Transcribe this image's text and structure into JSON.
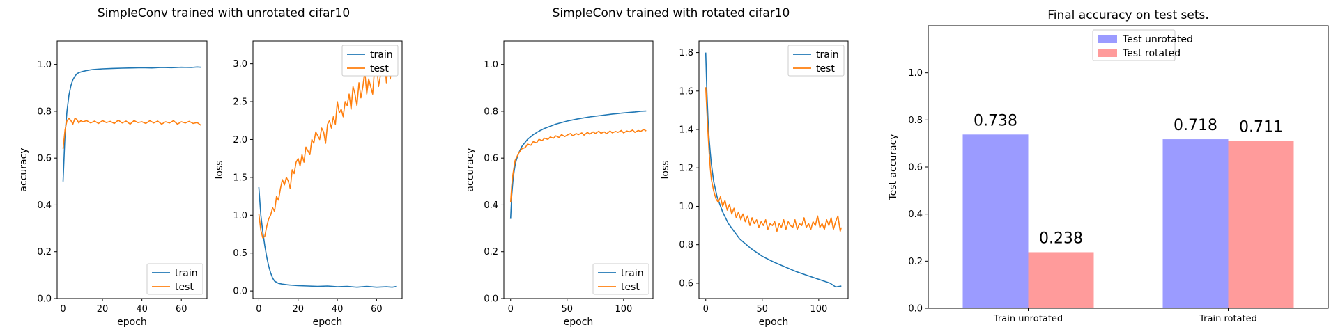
{
  "figure": {
    "suptitles": [
      "SimpleConv trained with unrotated cifar10",
      "SimpleConv trained with rotated cifar10"
    ]
  },
  "colors": {
    "train": "#1f77b4",
    "test": "#ff7f0e",
    "test_unrotated_bar": "#9b9bff",
    "test_rotated_bar": "#ff9b9b"
  },
  "chart_data": [
    {
      "id": "acc-unrotated",
      "type": "line",
      "title": "",
      "xlabel": "epoch",
      "ylabel": "accuracy",
      "xlim": [
        -3,
        73
      ],
      "ylim": [
        0.0,
        1.1
      ],
      "xticks": [
        0,
        20,
        40,
        60
      ],
      "yticks": [
        0.0,
        0.2,
        0.4,
        0.6,
        0.8,
        1.0
      ],
      "legend": "lower-right",
      "series": [
        {
          "name": "train",
          "color": "#1f77b4",
          "x": [
            0,
            1,
            2,
            3,
            4,
            5,
            6,
            7,
            8,
            10,
            12,
            15,
            18,
            20,
            25,
            30,
            35,
            40,
            45,
            50,
            55,
            60,
            65,
            68,
            70
          ],
          "y": [
            0.5,
            0.7,
            0.8,
            0.87,
            0.91,
            0.935,
            0.95,
            0.96,
            0.965,
            0.97,
            0.974,
            0.978,
            0.98,
            0.981,
            0.983,
            0.984,
            0.985,
            0.986,
            0.985,
            0.987,
            0.986,
            0.988,
            0.987,
            0.989,
            0.988
          ]
        },
        {
          "name": "test",
          "color": "#ff7f0e",
          "x": [
            0,
            1,
            2,
            3,
            4,
            5,
            6,
            7,
            8,
            9,
            10,
            12,
            14,
            16,
            18,
            20,
            22,
            24,
            26,
            28,
            30,
            32,
            34,
            36,
            38,
            40,
            42,
            44,
            46,
            48,
            50,
            52,
            54,
            56,
            58,
            60,
            62,
            64,
            66,
            68,
            70
          ],
          "y": [
            0.64,
            0.72,
            0.76,
            0.77,
            0.76,
            0.745,
            0.77,
            0.765,
            0.75,
            0.76,
            0.755,
            0.76,
            0.75,
            0.758,
            0.748,
            0.76,
            0.752,
            0.757,
            0.748,
            0.762,
            0.75,
            0.758,
            0.745,
            0.76,
            0.752,
            0.755,
            0.748,
            0.76,
            0.75,
            0.758,
            0.745,
            0.755,
            0.75,
            0.76,
            0.745,
            0.755,
            0.75,
            0.757,
            0.748,
            0.752,
            0.74
          ]
        }
      ]
    },
    {
      "id": "loss-unrotated",
      "type": "line",
      "title": "",
      "xlabel": "epoch",
      "ylabel": "loss",
      "xlim": [
        -3,
        73
      ],
      "ylim": [
        -0.1,
        3.3
      ],
      "xticks": [
        0,
        20,
        40,
        60
      ],
      "yticks": [
        0.0,
        0.5,
        1.0,
        1.5,
        2.0,
        2.5,
        3.0
      ],
      "legend": "upper-right",
      "series": [
        {
          "name": "train",
          "color": "#1f77b4",
          "x": [
            0,
            1,
            2,
            3,
            4,
            5,
            6,
            7,
            8,
            10,
            12,
            15,
            20,
            25,
            30,
            35,
            40,
            45,
            50,
            55,
            60,
            65,
            68,
            70
          ],
          "y": [
            1.37,
            1.0,
            0.78,
            0.6,
            0.45,
            0.33,
            0.24,
            0.17,
            0.13,
            0.1,
            0.09,
            0.08,
            0.07,
            0.065,
            0.06,
            0.065,
            0.055,
            0.06,
            0.05,
            0.06,
            0.05,
            0.055,
            0.05,
            0.06
          ]
        },
        {
          "name": "test",
          "color": "#ff7f0e",
          "x": [
            0,
            1,
            2,
            3,
            4,
            5,
            6,
            7,
            8,
            9,
            10,
            11,
            12,
            13,
            14,
            15,
            16,
            17,
            18,
            19,
            20,
            21,
            22,
            23,
            24,
            25,
            26,
            27,
            28,
            29,
            30,
            31,
            32,
            33,
            34,
            35,
            36,
            37,
            38,
            39,
            40,
            41,
            42,
            43,
            44,
            45,
            46,
            47,
            48,
            49,
            50,
            51,
            52,
            53,
            54,
            55,
            56,
            57,
            58,
            59,
            60,
            61,
            62,
            63,
            64,
            65,
            66,
            67,
            68,
            69,
            70
          ],
          "y": [
            1.02,
            0.8,
            0.7,
            0.72,
            0.85,
            0.95,
            1.0,
            1.1,
            1.05,
            1.25,
            1.2,
            1.35,
            1.47,
            1.4,
            1.5,
            1.45,
            1.35,
            1.6,
            1.55,
            1.7,
            1.75,
            1.65,
            1.8,
            1.7,
            1.9,
            1.85,
            1.8,
            2.0,
            1.95,
            2.1,
            2.05,
            2.0,
            2.15,
            2.1,
            1.95,
            2.2,
            2.25,
            2.15,
            2.3,
            2.2,
            2.5,
            2.35,
            2.4,
            2.3,
            2.5,
            2.45,
            2.6,
            2.4,
            2.7,
            2.6,
            2.45,
            2.75,
            2.55,
            2.7,
            2.9,
            2.6,
            2.8,
            2.7,
            2.6,
            2.95,
            3.0,
            2.7,
            2.85,
            2.9,
            3.1,
            2.75,
            3.0,
            2.8,
            3.05,
            2.95,
            3.0
          ]
        }
      ]
    },
    {
      "id": "acc-rotated",
      "type": "line",
      "title": "",
      "xlabel": "epoch",
      "ylabel": "accuracy",
      "xlim": [
        -6,
        126
      ],
      "ylim": [
        0.0,
        1.1
      ],
      "xticks": [
        0,
        50,
        100
      ],
      "yticks": [
        0.0,
        0.2,
        0.4,
        0.6,
        0.8,
        1.0
      ],
      "legend": "lower-right",
      "series": [
        {
          "name": "train",
          "color": "#1f77b4",
          "x": [
            0,
            1,
            2,
            3,
            4,
            5,
            7,
            10,
            15,
            20,
            25,
            30,
            40,
            50,
            60,
            70,
            80,
            90,
            100,
            110,
            115,
            120
          ],
          "y": [
            0.34,
            0.44,
            0.5,
            0.54,
            0.57,
            0.59,
            0.62,
            0.65,
            0.68,
            0.7,
            0.715,
            0.727,
            0.745,
            0.758,
            0.768,
            0.776,
            0.782,
            0.788,
            0.793,
            0.797,
            0.8,
            0.801
          ]
        },
        {
          "name": "test",
          "color": "#ff7f0e",
          "x": [
            0,
            1,
            2,
            3,
            4,
            5,
            7,
            10,
            13,
            15,
            18,
            20,
            23,
            25,
            28,
            30,
            33,
            35,
            38,
            40,
            43,
            45,
            48,
            50,
            53,
            55,
            58,
            60,
            63,
            65,
            68,
            70,
            73,
            75,
            78,
            80,
            83,
            85,
            88,
            90,
            93,
            95,
            98,
            100,
            103,
            105,
            108,
            110,
            113,
            115,
            118,
            120
          ],
          "y": [
            0.41,
            0.48,
            0.53,
            0.56,
            0.59,
            0.6,
            0.62,
            0.64,
            0.645,
            0.66,
            0.655,
            0.67,
            0.665,
            0.68,
            0.675,
            0.685,
            0.68,
            0.69,
            0.685,
            0.695,
            0.688,
            0.7,
            0.692,
            0.698,
            0.705,
            0.695,
            0.705,
            0.7,
            0.708,
            0.698,
            0.71,
            0.702,
            0.712,
            0.705,
            0.715,
            0.706,
            0.712,
            0.704,
            0.716,
            0.708,
            0.714,
            0.71,
            0.718,
            0.708,
            0.716,
            0.712,
            0.72,
            0.71,
            0.718,
            0.714,
            0.722,
            0.716
          ]
        }
      ]
    },
    {
      "id": "loss-rotated",
      "type": "line",
      "title": "",
      "xlabel": "epoch",
      "ylabel": "loss",
      "xlim": [
        -6,
        126
      ],
      "ylim": [
        0.52,
        1.86
      ],
      "xticks": [
        0,
        50,
        100
      ],
      "yticks": [
        0.6,
        0.8,
        1.0,
        1.2,
        1.4,
        1.6,
        1.8
      ],
      "legend": "upper-right",
      "series": [
        {
          "name": "train",
          "color": "#1f77b4",
          "x": [
            0,
            1,
            2,
            3,
            4,
            5,
            7,
            10,
            15,
            20,
            25,
            30,
            40,
            50,
            60,
            70,
            80,
            90,
            100,
            110,
            115,
            120
          ],
          "y": [
            1.8,
            1.6,
            1.45,
            1.35,
            1.28,
            1.22,
            1.13,
            1.05,
            0.97,
            0.91,
            0.87,
            0.83,
            0.78,
            0.74,
            0.71,
            0.685,
            0.66,
            0.64,
            0.62,
            0.6,
            0.58,
            0.585
          ]
        },
        {
          "name": "test",
          "color": "#ff7f0e",
          "x": [
            0,
            1,
            2,
            3,
            4,
            5,
            7,
            9,
            11,
            13,
            15,
            17,
            19,
            21,
            23,
            25,
            27,
            29,
            31,
            33,
            35,
            37,
            39,
            41,
            43,
            45,
            47,
            49,
            51,
            53,
            55,
            57,
            59,
            61,
            63,
            65,
            67,
            69,
            71,
            73,
            75,
            77,
            79,
            81,
            83,
            85,
            87,
            89,
            91,
            93,
            95,
            97,
            99,
            101,
            103,
            105,
            107,
            109,
            111,
            113,
            115,
            117,
            119,
            120
          ],
          "y": [
            1.62,
            1.5,
            1.38,
            1.28,
            1.2,
            1.14,
            1.08,
            1.04,
            1.02,
            1.05,
            1.0,
            1.03,
            0.98,
            1.01,
            0.96,
            0.99,
            0.94,
            0.97,
            0.93,
            0.96,
            0.92,
            0.95,
            0.9,
            0.94,
            0.91,
            0.93,
            0.89,
            0.92,
            0.9,
            0.93,
            0.88,
            0.91,
            0.9,
            0.92,
            0.87,
            0.91,
            0.89,
            0.93,
            0.88,
            0.92,
            0.9,
            0.89,
            0.93,
            0.88,
            0.91,
            0.9,
            0.94,
            0.89,
            0.91,
            0.88,
            0.92,
            0.9,
            0.95,
            0.89,
            0.91,
            0.88,
            0.93,
            0.9,
            0.94,
            0.88,
            0.92,
            0.95,
            0.87,
            0.89
          ]
        }
      ]
    },
    {
      "id": "final-accuracy",
      "type": "bar",
      "title": "Final accuracy on test sets.",
      "xlabel": "",
      "ylabel": "Test accuracy",
      "categories": [
        "Train unrotated",
        "Train rotated"
      ],
      "ylim": [
        0.0,
        1.2
      ],
      "yticks": [
        0.0,
        0.2,
        0.4,
        0.6,
        0.8,
        1.0
      ],
      "legend": "upper-center",
      "series": [
        {
          "name": "Test unrotated",
          "color": "#9b9bff",
          "values": [
            0.738,
            0.718
          ],
          "labels": [
            "0.738",
            "0.718"
          ]
        },
        {
          "name": "Test rotated",
          "color": "#ff9b9b",
          "values": [
            0.238,
            0.711
          ],
          "labels": [
            "0.238",
            "0.711"
          ]
        }
      ]
    }
  ]
}
